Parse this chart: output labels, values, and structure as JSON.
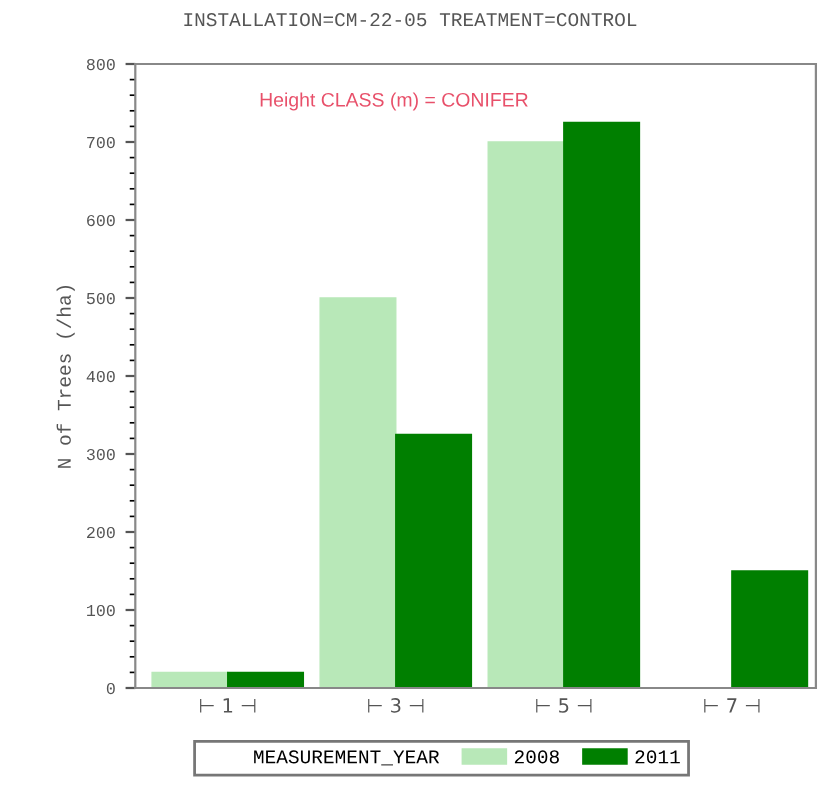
{
  "chart_data": {
    "type": "bar",
    "title": "INSTALLATION=CM-22-05 TREATMENT=CONTROL",
    "ylabel": "N of Trees (/ha)",
    "legend_title": "MEASUREMENT_YEAR",
    "annotations": [
      "Height CLASS (m) = CONIFER"
    ],
    "categories": [
      "⊢ 1 ⊣",
      "⊢ 3 ⊣",
      "⊢ 5 ⊣",
      "⊢ 7 ⊣"
    ],
    "series": [
      {
        "name": "2008",
        "color": "#b8e8b8",
        "values": [
          20,
          500,
          700,
          null
        ]
      },
      {
        "name": "2011",
        "color": "#007f00",
        "values": [
          20,
          325,
          725,
          150
        ]
      }
    ],
    "ylim": [
      0,
      800
    ],
    "yticks": [
      0,
      100,
      200,
      300,
      400,
      500,
      600,
      700,
      800
    ],
    "grid": false,
    "legend": "bottom"
  }
}
